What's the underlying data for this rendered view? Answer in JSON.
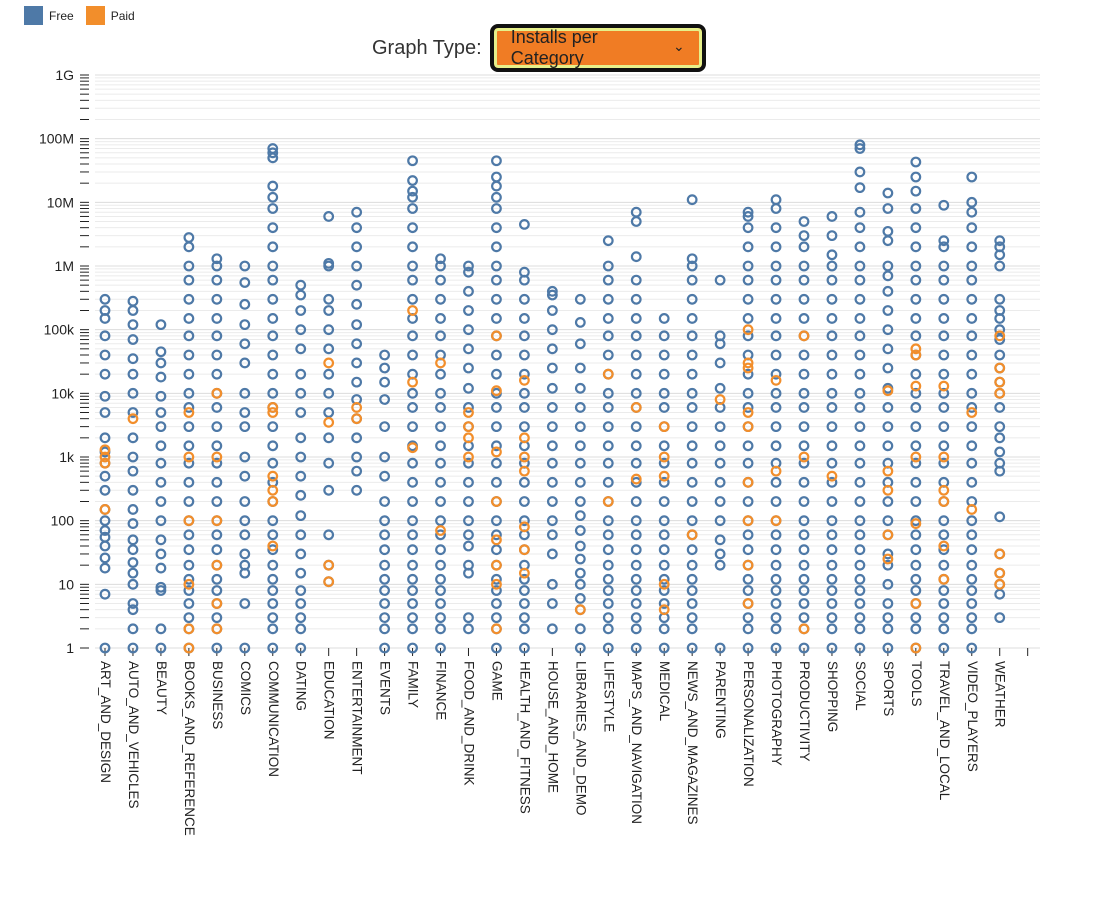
{
  "legend": {
    "items": [
      {
        "label": "Free",
        "color": "#4e79a7"
      },
      {
        "label": "Paid",
        "color": "#f28e2b"
      }
    ]
  },
  "controls": {
    "graph_type_label": "Graph Type:",
    "graph_type_value": "Installs per Category",
    "dropdown_color": "#f07c24"
  },
  "chart_data": {
    "type": "scatter",
    "yscale": "log",
    "ylim": [
      1,
      1000000000
    ],
    "yticks": [
      {
        "value": 1,
        "label": "1"
      },
      {
        "value": 10,
        "label": "10"
      },
      {
        "value": 100,
        "label": "100"
      },
      {
        "value": 1000,
        "label": "1k"
      },
      {
        "value": 10000,
        "label": "10k"
      },
      {
        "value": 100000,
        "label": "100k"
      },
      {
        "value": 1000000,
        "label": "1M"
      },
      {
        "value": 10000000,
        "label": "10M"
      },
      {
        "value": 100000000,
        "label": "100M"
      },
      {
        "value": 1000000000,
        "label": "1G"
      }
    ],
    "grid": true,
    "legend_position": "top-left",
    "categories": [
      "ART_AND_DESIGN",
      "AUTO_AND_VEHICLES",
      "BEAUTY",
      "BOOKS_AND_REFERENCE",
      "BUSINESS",
      "COMICS",
      "COMMUNICATION",
      "DATING",
      "EDUCATION",
      "ENTERTAINMENT",
      "EVENTS",
      "FAMILY",
      "FINANCE",
      "FOOD_AND_DRINK",
      "GAME",
      "HEALTH_AND_FITNESS",
      "HOUSE_AND_HOME",
      "LIBRARIES_AND_DEMO",
      "LIFESTYLE",
      "MAPS_AND_NAVIGATION",
      "MEDICAL",
      "NEWS_AND_MAGAZINES",
      "PARENTING",
      "PERSONALIZATION",
      "PHOTOGRAPHY",
      "PRODUCTIVITY",
      "SHOPPING",
      "SOCIAL",
      "SPORTS",
      "TOOLS",
      "TRAVEL_AND_LOCAL",
      "VIDEO_PLAYERS",
      "WEATHER"
    ],
    "series": [
      {
        "name": "Free",
        "color": "#4e79a7",
        "values": [
          [
            1,
            7,
            18,
            26,
            40,
            55,
            70,
            100,
            150,
            300,
            500,
            800,
            1200,
            2000,
            5000,
            9000,
            20000,
            40000,
            80000,
            150000,
            200000,
            300000
          ],
          [
            1,
            2,
            4,
            5,
            10,
            15,
            22,
            35,
            50,
            90,
            150,
            300,
            600,
            1000,
            2000,
            5000,
            10000,
            20000,
            35000,
            70000,
            120000,
            200000,
            280000
          ],
          [
            1,
            2,
            8,
            9,
            18,
            30,
            50,
            100,
            200,
            400,
            800,
            1500,
            3000,
            5000,
            9000,
            18000,
            30000,
            45000,
            120000
          ],
          [
            1,
            2,
            3,
            5,
            8,
            12,
            20,
            35,
            60,
            100,
            200,
            400,
            800,
            1500,
            3000,
            6000,
            10000,
            20000,
            40000,
            80000,
            150000,
            300000,
            600000,
            1000000,
            2000000,
            2800000
          ],
          [
            1,
            2,
            3,
            5,
            8,
            12,
            20,
            35,
            60,
            100,
            200,
            400,
            800,
            1500,
            3000,
            6000,
            10000,
            20000,
            40000,
            80000,
            150000,
            300000,
            600000,
            1000000,
            1300000
          ],
          [
            1,
            5,
            15,
            20,
            30,
            60,
            100,
            200,
            500,
            1000,
            3000,
            5000,
            10000,
            30000,
            60000,
            120000,
            250000,
            550000,
            1000000
          ],
          [
            1,
            2,
            3,
            5,
            8,
            12,
            20,
            35,
            60,
            100,
            200,
            400,
            800,
            1500,
            3000,
            6000,
            10000,
            20000,
            40000,
            80000,
            150000,
            300000,
            600000,
            1000000,
            2000000,
            4000000,
            8000000,
            12000000,
            18000000,
            50000000,
            60000000,
            70000000
          ],
          [
            1,
            2,
            3,
            5,
            8,
            15,
            30,
            60,
            120,
            250,
            500,
            1000,
            2000,
            5000,
            10000,
            20000,
            50000,
            100000,
            200000,
            350000,
            500000
          ],
          [
            11,
            20,
            60,
            300,
            800,
            2000,
            5000,
            10000,
            20000,
            50000,
            100000,
            200000,
            300000,
            1000000,
            1100000,
            6000000
          ],
          [
            300,
            600,
            1000,
            2000,
            4000,
            8000,
            15000,
            30000,
            60000,
            120000,
            250000,
            500000,
            1000000,
            2000000,
            4000000,
            7000000
          ],
          [
            1,
            2,
            3,
            5,
            8,
            12,
            20,
            35,
            60,
            100,
            200,
            500,
            1000,
            3000,
            8000,
            15000,
            25000,
            40000
          ],
          [
            1,
            2,
            3,
            5,
            8,
            12,
            20,
            35,
            60,
            100,
            200,
            400,
            800,
            1500,
            3000,
            6000,
            10000,
            20000,
            40000,
            80000,
            150000,
            300000,
            600000,
            1000000,
            2000000,
            4000000,
            8000000,
            12000000,
            15000000,
            22000000,
            45000000
          ],
          [
            1,
            2,
            3,
            5,
            8,
            12,
            20,
            35,
            60,
            100,
            200,
            400,
            800,
            1500,
            3000,
            6000,
            10000,
            20000,
            40000,
            80000,
            150000,
            300000,
            600000,
            1000000,
            1300000
          ],
          [
            2,
            3,
            15,
            20,
            40,
            60,
            100,
            200,
            400,
            800,
            1500,
            3000,
            6000,
            12000,
            25000,
            50000,
            100000,
            200000,
            400000,
            800000,
            1000000
          ],
          [
            1,
            2,
            3,
            5,
            8,
            12,
            20,
            35,
            60,
            100,
            200,
            400,
            800,
            1500,
            3000,
            6000,
            10000,
            20000,
            40000,
            80000,
            150000,
            300000,
            600000,
            1000000,
            2000000,
            4000000,
            8000000,
            12000000,
            18000000,
            25000000,
            45000000
          ],
          [
            1,
            2,
            3,
            5,
            8,
            12,
            20,
            35,
            60,
            100,
            200,
            400,
            800,
            1500,
            3000,
            6000,
            10000,
            20000,
            40000,
            80000,
            150000,
            300000,
            600000,
            800000,
            4500000
          ],
          [
            2,
            5,
            10,
            30,
            60,
            100,
            200,
            400,
            800,
            1500,
            3000,
            6000,
            12000,
            25000,
            50000,
            100000,
            200000,
            350000,
            400000
          ],
          [
            1,
            2,
            4,
            6,
            10,
            15,
            25,
            40,
            70,
            120,
            200,
            400,
            800,
            1500,
            3000,
            6000,
            12000,
            25000,
            60000,
            130000,
            300000
          ],
          [
            1,
            2,
            3,
            5,
            8,
            12,
            20,
            35,
            60,
            100,
            200,
            400,
            800,
            1500,
            3000,
            6000,
            10000,
            20000,
            40000,
            80000,
            150000,
            300000,
            600000,
            1000000,
            2500000
          ],
          [
            1,
            2,
            3,
            5,
            8,
            12,
            20,
            35,
            60,
            100,
            200,
            400,
            800,
            1500,
            3000,
            6000,
            10000,
            20000,
            40000,
            80000,
            150000,
            300000,
            600000,
            1400000,
            5000000,
            7000000
          ],
          [
            1,
            2,
            3,
            5,
            8,
            12,
            20,
            35,
            60,
            100,
            200,
            400,
            800,
            1500,
            3000,
            6000,
            10000,
            20000,
            40000,
            80000,
            150000
          ],
          [
            1,
            2,
            3,
            5,
            8,
            12,
            20,
            35,
            60,
            100,
            200,
            400,
            800,
            1500,
            3000,
            6000,
            10000,
            20000,
            40000,
            80000,
            150000,
            300000,
            600000,
            1000000,
            1300000,
            11000000
          ],
          [
            1,
            20,
            30,
            50,
            100,
            200,
            400,
            800,
            1500,
            3000,
            6000,
            12000,
            30000,
            60000,
            80000,
            600000
          ],
          [
            1,
            2,
            3,
            5,
            8,
            12,
            20,
            35,
            60,
            100,
            200,
            400,
            800,
            1500,
            3000,
            6000,
            10000,
            20000,
            40000,
            80000,
            150000,
            300000,
            600000,
            1000000,
            2000000,
            4000000,
            6000000,
            7000000
          ],
          [
            1,
            2,
            3,
            5,
            8,
            12,
            20,
            35,
            60,
            100,
            200,
            400,
            800,
            1500,
            3000,
            6000,
            10000,
            20000,
            40000,
            80000,
            150000,
            300000,
            600000,
            1000000,
            2000000,
            4000000,
            8000000,
            11000000
          ],
          [
            1,
            2,
            3,
            5,
            8,
            12,
            20,
            35,
            60,
            100,
            200,
            400,
            800,
            1500,
            3000,
            6000,
            10000,
            20000,
            40000,
            80000,
            150000,
            300000,
            600000,
            1000000,
            2000000,
            3000000,
            5000000
          ],
          [
            1,
            2,
            3,
            5,
            8,
            12,
            20,
            35,
            60,
            100,
            200,
            400,
            800,
            1500,
            3000,
            6000,
            10000,
            20000,
            40000,
            80000,
            150000,
            300000,
            600000,
            1000000,
            1500000,
            3000000,
            6000000
          ],
          [
            1,
            2,
            3,
            5,
            8,
            12,
            20,
            35,
            60,
            100,
            200,
            400,
            800,
            1500,
            3000,
            6000,
            10000,
            20000,
            40000,
            80000,
            150000,
            300000,
            600000,
            1000000,
            2000000,
            4000000,
            7000000,
            17000000,
            30000000,
            70000000,
            80000000
          ],
          [
            1,
            2,
            3,
            5,
            10,
            20,
            30,
            60,
            100,
            200,
            400,
            800,
            1500,
            3000,
            6000,
            12000,
            25000,
            50000,
            100000,
            200000,
            400000,
            700000,
            1000000,
            2500000,
            3500000,
            8000000,
            14000000
          ],
          [
            1,
            2,
            3,
            5,
            8,
            12,
            20,
            35,
            60,
            100,
            200,
            400,
            800,
            1500,
            3000,
            6000,
            10000,
            20000,
            40000,
            80000,
            150000,
            300000,
            600000,
            1000000,
            2000000,
            4000000,
            8000000,
            15000000,
            25000000,
            43000000
          ],
          [
            1,
            2,
            3,
            5,
            8,
            12,
            20,
            35,
            60,
            100,
            200,
            400,
            800,
            1500,
            3000,
            6000,
            10000,
            20000,
            40000,
            80000,
            150000,
            300000,
            600000,
            1000000,
            2000000,
            2500000,
            9000000
          ],
          [
            1,
            2,
            3,
            5,
            8,
            12,
            20,
            35,
            60,
            100,
            200,
            400,
            800,
            1500,
            3000,
            6000,
            10000,
            20000,
            40000,
            80000,
            150000,
            300000,
            600000,
            1000000,
            2000000,
            4000000,
            7000000,
            10000000,
            25000000
          ],
          [
            3,
            7,
            10,
            15,
            30,
            115,
            600,
            800,
            1200,
            2000,
            3000,
            6000,
            10000,
            15000,
            25000,
            40000,
            70000,
            100000,
            150000,
            200000,
            300000,
            1000000,
            1500000,
            2000000,
            2500000
          ]
        ]
      },
      {
        "name": "Paid",
        "color": "#f28e2b",
        "values": [
          [
            150,
            800,
            1000,
            1300
          ],
          [
            4000
          ],
          [],
          [
            1,
            2,
            10,
            100,
            1000,
            5000
          ],
          [
            2,
            5,
            20,
            100,
            1000,
            10000
          ],
          [],
          [
            40,
            200,
            300,
            500,
            5000,
            6000
          ],
          [],
          [
            11,
            20,
            3500,
            30000
          ],
          [
            4000,
            6000
          ],
          [],
          [
            1400,
            15000,
            200000
          ],
          [
            70,
            30000
          ],
          [
            1000,
            2000,
            3000,
            5000
          ],
          [
            2,
            10,
            20,
            50,
            200,
            1200,
            11000,
            80000
          ],
          [
            15,
            35,
            80,
            600,
            1000,
            2000,
            16000
          ],
          [],
          [
            4
          ],
          [
            200,
            20000
          ],
          [
            450,
            6000
          ],
          [
            4,
            10,
            500,
            1000,
            3000
          ],
          [
            60
          ],
          [
            8000
          ],
          [
            5,
            20,
            100,
            400,
            3000,
            5000,
            25000,
            30000,
            100000
          ],
          [
            100,
            600,
            16000
          ],
          [
            2,
            1000,
            80000
          ],
          [
            500
          ],
          [],
          [
            25,
            60,
            300,
            600,
            11000
          ],
          [
            1,
            5,
            90,
            1000,
            13000,
            40000,
            50000
          ],
          [
            12,
            40,
            200,
            300,
            1000,
            13000
          ],
          [
            150,
            5000
          ],
          [
            10,
            15,
            30,
            10000,
            15000,
            25000,
            80000
          ]
        ]
      }
    ]
  }
}
